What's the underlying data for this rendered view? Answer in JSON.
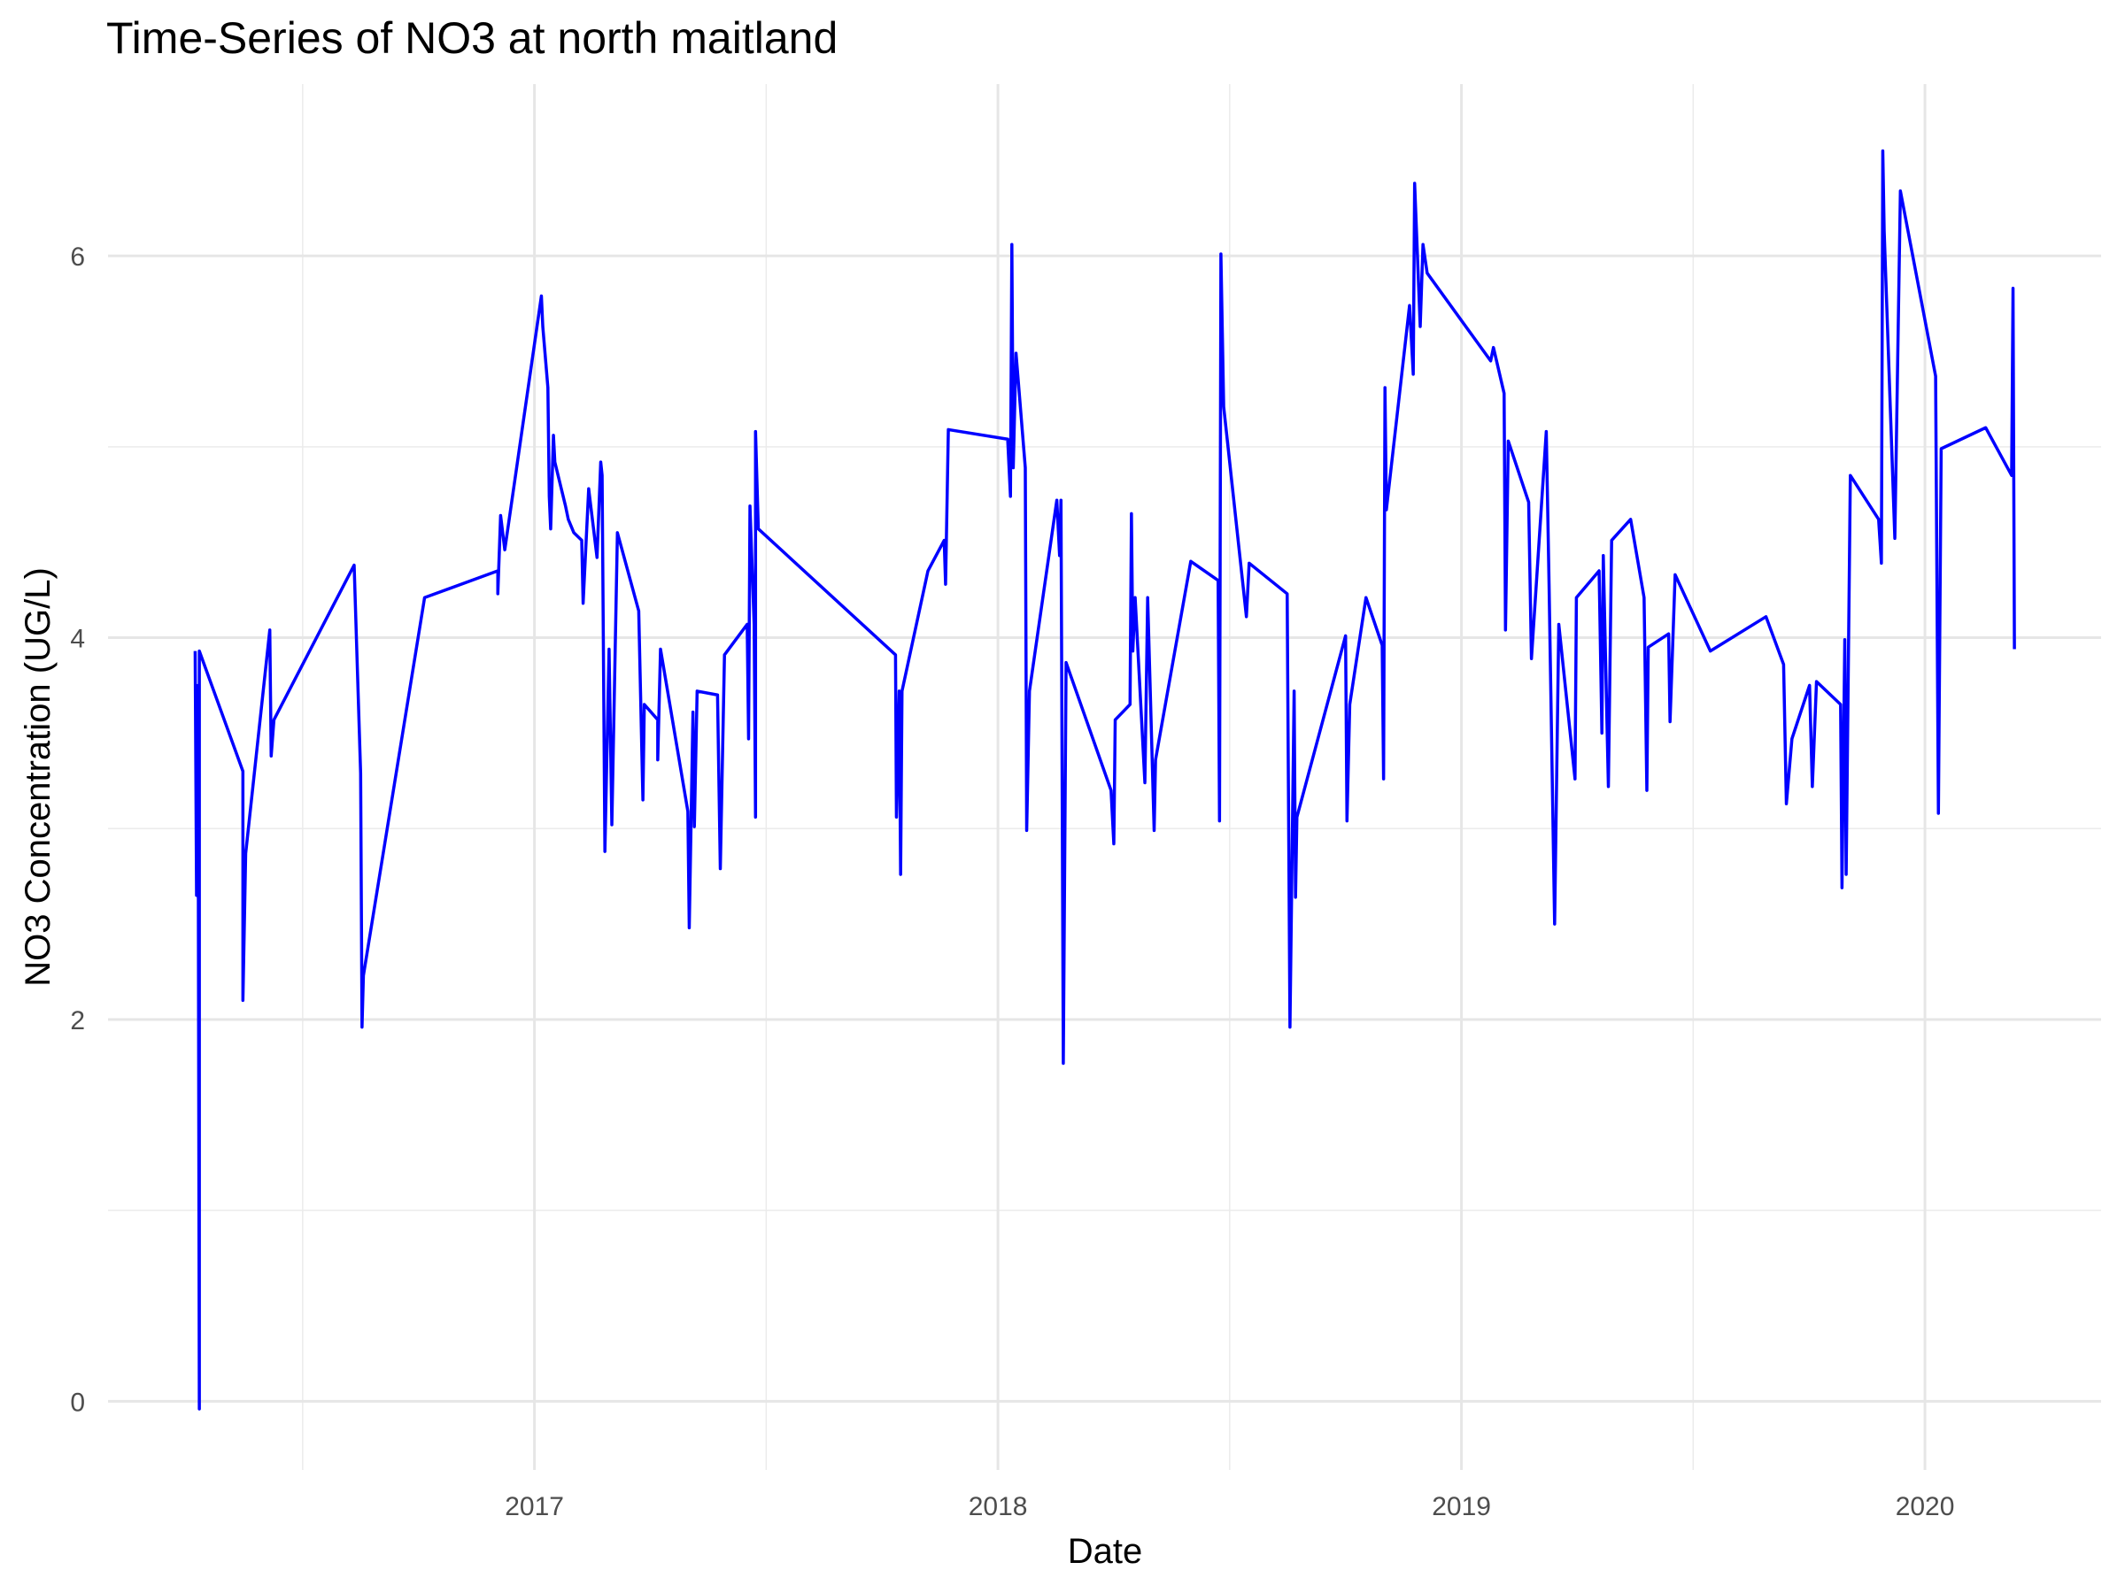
{
  "chart_data": {
    "type": "line",
    "title": "Time-Series of NO3 at north maitland",
    "x_label": "Date",
    "y_label": "NO3 Concentration (UG/L)",
    "color": "#0000ff",
    "grid": true,
    "minor_grid": true,
    "xlim": [
      2016.08,
      2020.38
    ],
    "ylim": [
      -0.36,
      6.9
    ],
    "xticks": [
      2017,
      2018,
      2019,
      2020
    ],
    "yticks": [
      0,
      2,
      4,
      6
    ],
    "x": [
      2016.268,
      2016.271,
      2016.274,
      2016.277,
      2016.277,
      2016.371,
      2016.371,
      2016.377,
      2016.429,
      2016.432,
      2016.438,
      2016.611,
      2016.625,
      2016.628,
      2016.631,
      2016.763,
      2016.921,
      2016.921,
      2016.927,
      2016.936,
      2017.015,
      2017.018,
      2017.029,
      2017.032,
      2017.035,
      2017.041,
      2017.044,
      2017.067,
      2017.073,
      2017.085,
      2017.102,
      2017.105,
      2017.117,
      2017.135,
      2017.143,
      2017.146,
      2017.152,
      2017.161,
      2017.167,
      2017.179,
      2017.225,
      2017.234,
      2017.237,
      2017.266,
      2017.266,
      2017.272,
      2017.331,
      2017.334,
      2017.342,
      2017.345,
      2017.351,
      2017.395,
      2017.401,
      2017.41,
      2017.459,
      2017.462,
      2017.465,
      2017.474,
      2017.477,
      2017.477,
      2017.483,
      2017.779,
      2017.781,
      2017.787,
      2017.79,
      2017.793,
      2017.849,
      2017.884,
      2017.887,
      2017.893,
      2018.021,
      2018.027,
      2018.03,
      2018.033,
      2018.039,
      2018.059,
      2018.062,
      2018.068,
      2018.127,
      2018.133,
      2018.136,
      2018.141,
      2018.147,
      2018.244,
      2018.25,
      2018.253,
      2018.285,
      2018.288,
      2018.291,
      2018.296,
      2018.317,
      2018.323,
      2018.337,
      2018.34,
      2018.416,
      2018.475,
      2018.478,
      2018.481,
      2018.487,
      2018.536,
      2018.542,
      2018.624,
      2018.63,
      2018.639,
      2018.642,
      2018.645,
      2018.75,
      2018.753,
      2018.759,
      2018.794,
      2018.829,
      2018.832,
      2018.835,
      2018.838,
      2018.888,
      2018.896,
      2018.899,
      2018.911,
      2018.917,
      2018.926,
      2019.063,
      2019.069,
      2019.092,
      2019.095,
      2019.101,
      2019.145,
      2019.151,
      2019.183,
      2019.189,
      2019.201,
      2019.21,
      2019.245,
      2019.248,
      2019.297,
      2019.303,
      2019.306,
      2019.317,
      2019.324,
      2019.365,
      2019.394,
      2019.4,
      2019.403,
      2019.447,
      2019.45,
      2019.461,
      2019.537,
      2019.657,
      2019.695,
      2019.701,
      2019.713,
      2019.751,
      2019.757,
      2019.766,
      2019.818,
      2019.821,
      2019.827,
      2019.83,
      2019.839,
      2019.9,
      2019.906,
      2019.909,
      2019.912,
      2019.935,
      2019.947,
      2020.023,
      2020.029,
      2020.035,
      2020.131,
      2020.187,
      2020.19,
      2020.193
    ],
    "values": [
      3.93,
      2.65,
      3.75,
      -0.04,
      3.93,
      3.3,
      2.1,
      2.87,
      4.04,
      3.38,
      3.57,
      4.38,
      3.29,
      1.96,
      2.23,
      4.21,
      4.35,
      4.23,
      4.64,
      4.46,
      5.79,
      5.63,
      5.31,
      4.74,
      4.57,
      5.06,
      4.92,
      4.69,
      4.62,
      4.55,
      4.51,
      4.18,
      4.78,
      4.42,
      4.92,
      4.85,
      2.88,
      3.94,
      3.02,
      4.55,
      4.14,
      3.15,
      3.65,
      3.57,
      3.36,
      3.94,
      3.09,
      2.48,
      3.61,
      3.01,
      3.72,
      3.7,
      2.79,
      3.91,
      4.07,
      3.47,
      4.69,
      4.07,
      3.06,
      5.08,
      4.57,
      3.91,
      3.06,
      3.72,
      2.76,
      3.72,
      4.35,
      4.51,
      4.28,
      5.09,
      5.04,
      4.74,
      6.06,
      4.89,
      5.49,
      4.89,
      2.99,
      3.72,
      4.72,
      4.43,
      4.72,
      1.77,
      3.87,
      3.2,
      2.92,
      3.57,
      3.65,
      4.65,
      3.93,
      4.21,
      3.24,
      4.21,
      2.99,
      3.36,
      4.4,
      4.3,
      3.04,
      6.01,
      5.21,
      4.11,
      4.39,
      4.23,
      1.96,
      3.72,
      2.64,
      3.06,
      4.01,
      3.04,
      3.65,
      4.21,
      3.96,
      3.26,
      5.31,
      4.67,
      5.74,
      5.38,
      6.38,
      5.63,
      6.06,
      5.91,
      5.45,
      5.52,
      5.28,
      4.04,
      5.03,
      4.71,
      3.89,
      5.08,
      4.28,
      2.5,
      4.07,
      3.26,
      4.21,
      4.35,
      3.5,
      4.43,
      3.22,
      4.51,
      4.62,
      4.21,
      3.2,
      3.95,
      4.02,
      3.56,
      4.33,
      3.93,
      4.11,
      3.86,
      3.13,
      3.47,
      3.75,
      3.22,
      3.77,
      3.65,
      2.69,
      3.99,
      2.76,
      4.85,
      4.62,
      4.39,
      6.55,
      6.13,
      4.52,
      6.34,
      5.37,
      3.08,
      4.99,
      5.1,
      4.85,
      5.83,
      3.94
    ]
  }
}
